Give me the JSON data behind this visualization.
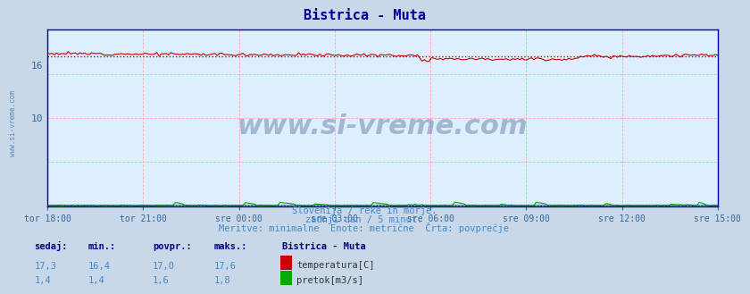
{
  "title": "Bistrica - Muta",
  "title_color": "#000099",
  "bg_color": "#ddeeff",
  "plot_bg_color": "#ddeeff",
  "outer_bg_color": "#c8d8e8",
  "x_tick_labels": [
    "tor 18:00",
    "tor 21:00",
    "sre 00:00",
    "sre 03:00",
    "sre 06:00",
    "sre 09:00",
    "sre 12:00",
    "sre 15:00"
  ],
  "x_tick_positions": [
    0,
    36,
    72,
    108,
    144,
    180,
    216,
    252
  ],
  "n_points": 289,
  "temp_min": 16.4,
  "temp_max": 17.6,
  "temp_avg_line": 17.0,
  "flow_min": 0.0,
  "flow_max": 0.5,
  "flow_avg_line": 0.1,
  "temp_color": "#cc0000",
  "flow_color": "#00aa00",
  "height_color": "#0000cc",
  "grid_color": "#ffaaaa",
  "y_min": 0,
  "y_max": 20,
  "y_label_16": "16",
  "y_label_10": "10",
  "subtitle1": "Slovenija / reke in morje.",
  "subtitle2": "zadnji dan / 5 minut.",
  "subtitle3": "Meritve: minimalne  Enote: metrične  Črta: povprečje",
  "subtitle_color": "#4488cc",
  "table_header": [
    "sedaj:",
    "min.:",
    "povpr.:",
    "maks.:"
  ],
  "table_col_color": "#000080",
  "table_val_color": "#4488cc",
  "station_name": "Bistrica - Muta",
  "row1_vals": [
    "17,3",
    "16,4",
    "17,0",
    "17,6"
  ],
  "row2_vals": [
    "1,4",
    "1,4",
    "1,6",
    "1,8"
  ],
  "legend1": "temperatura[C]",
  "legend2": "pretok[m3/s]",
  "legend1_color": "#cc0000",
  "legend2_color": "#00aa00",
  "watermark": "www.si-vreme.com",
  "watermark_color": "#1a3a6a",
  "watermark_alpha": 0.3,
  "left_text": "www.si-vreme.com",
  "left_text_color": "#4477aa"
}
